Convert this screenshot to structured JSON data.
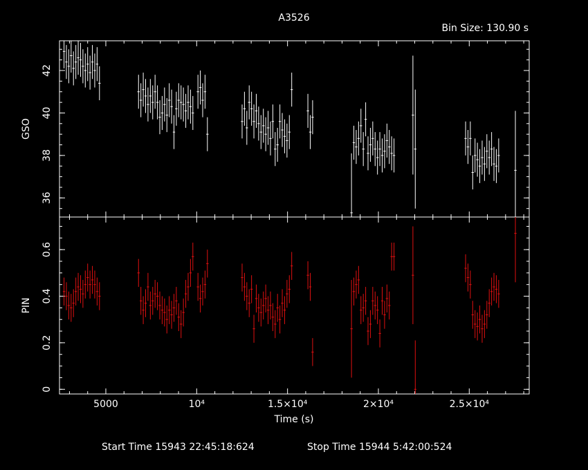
{
  "chart_data": {
    "type": "scatter",
    "title": "A3526",
    "bin_size": "Bin Size: 130.90 s",
    "xlabel": "Time (s)",
    "footer": {
      "start": "Start Time 15943 22:45:18:624",
      "stop": "Stop Time 15944  5:42:00:524"
    },
    "xlim": [
      2450,
      28300
    ],
    "x_ticks": [
      {
        "value": 5000,
        "label": "5000"
      },
      {
        "value": 10000,
        "label": "10⁴"
      },
      {
        "value": 15000,
        "label": "1.5×10⁴"
      },
      {
        "value": 20000,
        "label": "2×10⁴"
      },
      {
        "value": 25000,
        "label": "2.5×10⁴"
      }
    ],
    "panels": [
      {
        "name": "gso",
        "ylabel": "GSO",
        "color": "#ffffff",
        "ylim": [
          35.1,
          43.4
        ],
        "y_ticks": [
          {
            "value": 36,
            "label": "36"
          },
          {
            "value": 38,
            "label": "38"
          },
          {
            "value": 40,
            "label": "40"
          },
          {
            "value": 42,
            "label": "42"
          }
        ],
        "err": 0.8,
        "points": [
          [
            2700,
            42.9
          ],
          [
            2830,
            42.4
          ],
          [
            2960,
            42.2
          ],
          [
            3090,
            42.7
          ],
          [
            3220,
            42.1
          ],
          [
            3350,
            42.4
          ],
          [
            3480,
            42.6
          ],
          [
            3610,
            42.5
          ],
          [
            3740,
            42.2
          ],
          [
            3870,
            42.0
          ],
          [
            4000,
            42.3
          ],
          [
            4130,
            41.9
          ],
          [
            4260,
            42.4
          ],
          [
            4390,
            42.0
          ],
          [
            4520,
            42.3
          ],
          [
            4650,
            41.4
          ],
          [
            6800,
            41.0
          ],
          [
            6930,
            40.6
          ],
          [
            7060,
            41.1
          ],
          [
            7190,
            40.8
          ],
          [
            7320,
            40.4
          ],
          [
            7450,
            40.8
          ],
          [
            7580,
            40.5
          ],
          [
            7710,
            41.0
          ],
          [
            7840,
            40.5
          ],
          [
            7970,
            39.8
          ],
          [
            8100,
            40.0
          ],
          [
            8230,
            40.4
          ],
          [
            8360,
            39.9
          ],
          [
            8490,
            40.6
          ],
          [
            8620,
            40.3
          ],
          [
            8750,
            39.1
          ],
          [
            8880,
            40.2
          ],
          [
            9010,
            40.6
          ],
          [
            9140,
            40.5
          ],
          [
            9270,
            40.4
          ],
          [
            9400,
            40.1
          ],
          [
            9530,
            40.5
          ],
          [
            9660,
            40.3
          ],
          [
            9790,
            40.0
          ],
          [
            10070,
            41.0
          ],
          [
            10200,
            41.2
          ],
          [
            10330,
            40.6
          ],
          [
            10460,
            41.0
          ],
          [
            10590,
            39.0
          ],
          [
            12500,
            39.6
          ],
          [
            12630,
            40.2
          ],
          [
            12760,
            39.3
          ],
          [
            12890,
            40.5
          ],
          [
            13020,
            40.2
          ],
          [
            13150,
            39.6
          ],
          [
            13280,
            40.1
          ],
          [
            13410,
            39.5
          ],
          [
            13540,
            39.1
          ],
          [
            13670,
            39.4
          ],
          [
            13800,
            39.0
          ],
          [
            13930,
            39.3
          ],
          [
            14060,
            38.8
          ],
          [
            14190,
            39.6
          ],
          [
            14320,
            38.3
          ],
          [
            14450,
            38.5
          ],
          [
            14580,
            39.6
          ],
          [
            14710,
            39.2
          ],
          [
            14840,
            38.9
          ],
          [
            14970,
            38.7
          ],
          [
            15100,
            39.1
          ],
          [
            15230,
            41.1
          ],
          [
            16120,
            40.1
          ],
          [
            16250,
            39.1
          ],
          [
            16380,
            39.8
          ],
          [
            18520,
            35.3
          ],
          [
            18650,
            38.6
          ],
          [
            18780,
            38.4
          ],
          [
            18910,
            38.8
          ],
          [
            19040,
            39.4
          ],
          [
            19170,
            38.3
          ],
          [
            19300,
            39.7
          ],
          [
            19430,
            38.1
          ],
          [
            19560,
            38.5
          ],
          [
            19690,
            38.8
          ],
          [
            19820,
            38.3
          ],
          [
            19950,
            37.9
          ],
          [
            20080,
            38.3
          ],
          [
            20210,
            38.0
          ],
          [
            20340,
            38.2
          ],
          [
            20470,
            38.7
          ],
          [
            20600,
            38.4
          ],
          [
            20730,
            38.1
          ],
          [
            20860,
            38.0
          ],
          [
            21900,
            39.9
          ],
          [
            22030,
            38.3
          ],
          [
            24800,
            38.8
          ],
          [
            24930,
            38.4
          ],
          [
            25060,
            38.8
          ],
          [
            25190,
            37.2
          ],
          [
            25320,
            38.0
          ],
          [
            25450,
            37.8
          ],
          [
            25580,
            37.5
          ],
          [
            25710,
            37.9
          ],
          [
            25840,
            37.6
          ],
          [
            25970,
            38.2
          ],
          [
            26100,
            37.9
          ],
          [
            26230,
            38.3
          ],
          [
            26360,
            37.6
          ],
          [
            26490,
            37.5
          ],
          [
            26620,
            38.0
          ],
          [
            27540,
            37.3
          ]
        ]
      },
      {
        "name": "pin",
        "ylabel": "PIN",
        "color": "#e01010",
        "ylim": [
          -0.02,
          0.74
        ],
        "y_ticks": [
          {
            "value": 0,
            "label": "0"
          },
          {
            "value": 0.2,
            "label": "0.2"
          },
          {
            "value": 0.4,
            "label": "0.4"
          },
          {
            "value": 0.6,
            "label": "0.6"
          }
        ],
        "err": 0.06,
        "points": [
          [
            2700,
            0.42
          ],
          [
            2830,
            0.4
          ],
          [
            2960,
            0.36
          ],
          [
            3090,
            0.35
          ],
          [
            3220,
            0.37
          ],
          [
            3350,
            0.42
          ],
          [
            3480,
            0.44
          ],
          [
            3610,
            0.43
          ],
          [
            3740,
            0.41
          ],
          [
            3870,
            0.45
          ],
          [
            4000,
            0.48
          ],
          [
            4130,
            0.45
          ],
          [
            4260,
            0.47
          ],
          [
            4390,
            0.45
          ],
          [
            4520,
            0.42
          ],
          [
            4650,
            0.4
          ],
          [
            6800,
            0.5
          ],
          [
            6930,
            0.38
          ],
          [
            7060,
            0.34
          ],
          [
            7190,
            0.37
          ],
          [
            7320,
            0.44
          ],
          [
            7450,
            0.36
          ],
          [
            7580,
            0.38
          ],
          [
            7710,
            0.41
          ],
          [
            7840,
            0.4
          ],
          [
            7970,
            0.36
          ],
          [
            8100,
            0.34
          ],
          [
            8230,
            0.33
          ],
          [
            8360,
            0.3
          ],
          [
            8490,
            0.34
          ],
          [
            8620,
            0.32
          ],
          [
            8750,
            0.35
          ],
          [
            8880,
            0.38
          ],
          [
            9010,
            0.31
          ],
          [
            9140,
            0.28
          ],
          [
            9270,
            0.33
          ],
          [
            9400,
            0.41
          ],
          [
            9530,
            0.44
          ],
          [
            9660,
            0.5
          ],
          [
            9790,
            0.57
          ],
          [
            10070,
            0.44
          ],
          [
            10200,
            0.39
          ],
          [
            10330,
            0.42
          ],
          [
            10460,
            0.45
          ],
          [
            10590,
            0.54
          ],
          [
            12500,
            0.48
          ],
          [
            12630,
            0.44
          ],
          [
            12760,
            0.4
          ],
          [
            12890,
            0.37
          ],
          [
            13020,
            0.43
          ],
          [
            13150,
            0.26
          ],
          [
            13280,
            0.39
          ],
          [
            13410,
            0.35
          ],
          [
            13540,
            0.33
          ],
          [
            13670,
            0.36
          ],
          [
            13800,
            0.39
          ],
          [
            13930,
            0.34
          ],
          [
            14060,
            0.36
          ],
          [
            14190,
            0.31
          ],
          [
            14320,
            0.28
          ],
          [
            14450,
            0.35
          ],
          [
            14580,
            0.3
          ],
          [
            14710,
            0.37
          ],
          [
            14840,
            0.34
          ],
          [
            14970,
            0.41
          ],
          [
            15100,
            0.43
          ],
          [
            15230,
            0.53
          ],
          [
            16120,
            0.49
          ],
          [
            16250,
            0.44
          ],
          [
            16380,
            0.16
          ],
          [
            18520,
            0.26
          ],
          [
            18650,
            0.42
          ],
          [
            18780,
            0.45
          ],
          [
            18910,
            0.47
          ],
          [
            19040,
            0.34
          ],
          [
            19170,
            0.35
          ],
          [
            19300,
            0.38
          ],
          [
            19430,
            0.25
          ],
          [
            19560,
            0.28
          ],
          [
            19690,
            0.38
          ],
          [
            19820,
            0.36
          ],
          [
            19950,
            0.34
          ],
          [
            20080,
            0.24
          ],
          [
            20210,
            0.38
          ],
          [
            20340,
            0.32
          ],
          [
            20470,
            0.39
          ],
          [
            20600,
            0.36
          ],
          [
            20730,
            0.57
          ],
          [
            20860,
            0.57
          ],
          [
            21900,
            0.49
          ],
          [
            22030,
            0.0
          ],
          [
            24800,
            0.52
          ],
          [
            24930,
            0.48
          ],
          [
            25060,
            0.45
          ],
          [
            25190,
            0.32
          ],
          [
            25320,
            0.28
          ],
          [
            25450,
            0.27
          ],
          [
            25580,
            0.3
          ],
          [
            25710,
            0.26
          ],
          [
            25840,
            0.28
          ],
          [
            25970,
            0.32
          ],
          [
            26100,
            0.37
          ],
          [
            26230,
            0.42
          ],
          [
            26360,
            0.44
          ],
          [
            26490,
            0.43
          ],
          [
            26620,
            0.41
          ],
          [
            27540,
            0.67
          ]
        ]
      }
    ]
  }
}
